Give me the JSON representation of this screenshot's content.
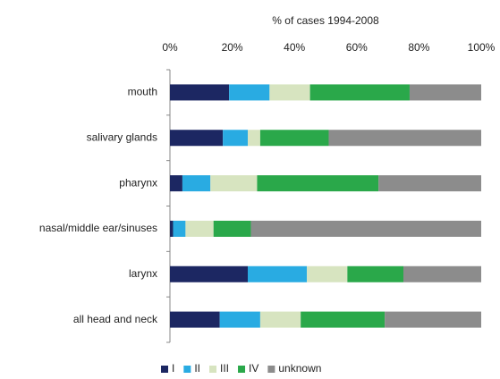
{
  "chart_data": {
    "type": "stacked-bar-horizontal",
    "xlabel": "% of cases 1994-2008",
    "categories": [
      "mouth",
      "salivary glands",
      "pharynx",
      "nasal/middle ear/sinuses",
      "larynx",
      "all head and neck"
    ],
    "series": [
      {
        "name": "I",
        "color": "#1c2762",
        "values": [
          19,
          17,
          4,
          1,
          25,
          16
        ]
      },
      {
        "name": "II",
        "color": "#29abe2",
        "values": [
          13,
          8,
          9,
          4,
          19,
          13
        ]
      },
      {
        "name": "III",
        "color": "#d7e4c0",
        "values": [
          13,
          4,
          15,
          9,
          13,
          13
        ]
      },
      {
        "name": "IV",
        "color": "#2aa84a",
        "values": [
          32,
          22,
          39,
          12,
          18,
          27
        ]
      },
      {
        "name": "unknown",
        "color": "#8c8c8c",
        "values": [
          23,
          49,
          33,
          74,
          25,
          31
        ]
      }
    ],
    "xlim": [
      0,
      100
    ],
    "xticks": [
      {
        "value": 0,
        "label": "0%"
      },
      {
        "value": 20,
        "label": "20%"
      },
      {
        "value": 40,
        "label": "40%"
      },
      {
        "value": 60,
        "label": "60%"
      },
      {
        "value": 80,
        "label": "80%"
      },
      {
        "value": 100,
        "label": "100%"
      }
    ],
    "grid": false,
    "legend": "bottom"
  }
}
